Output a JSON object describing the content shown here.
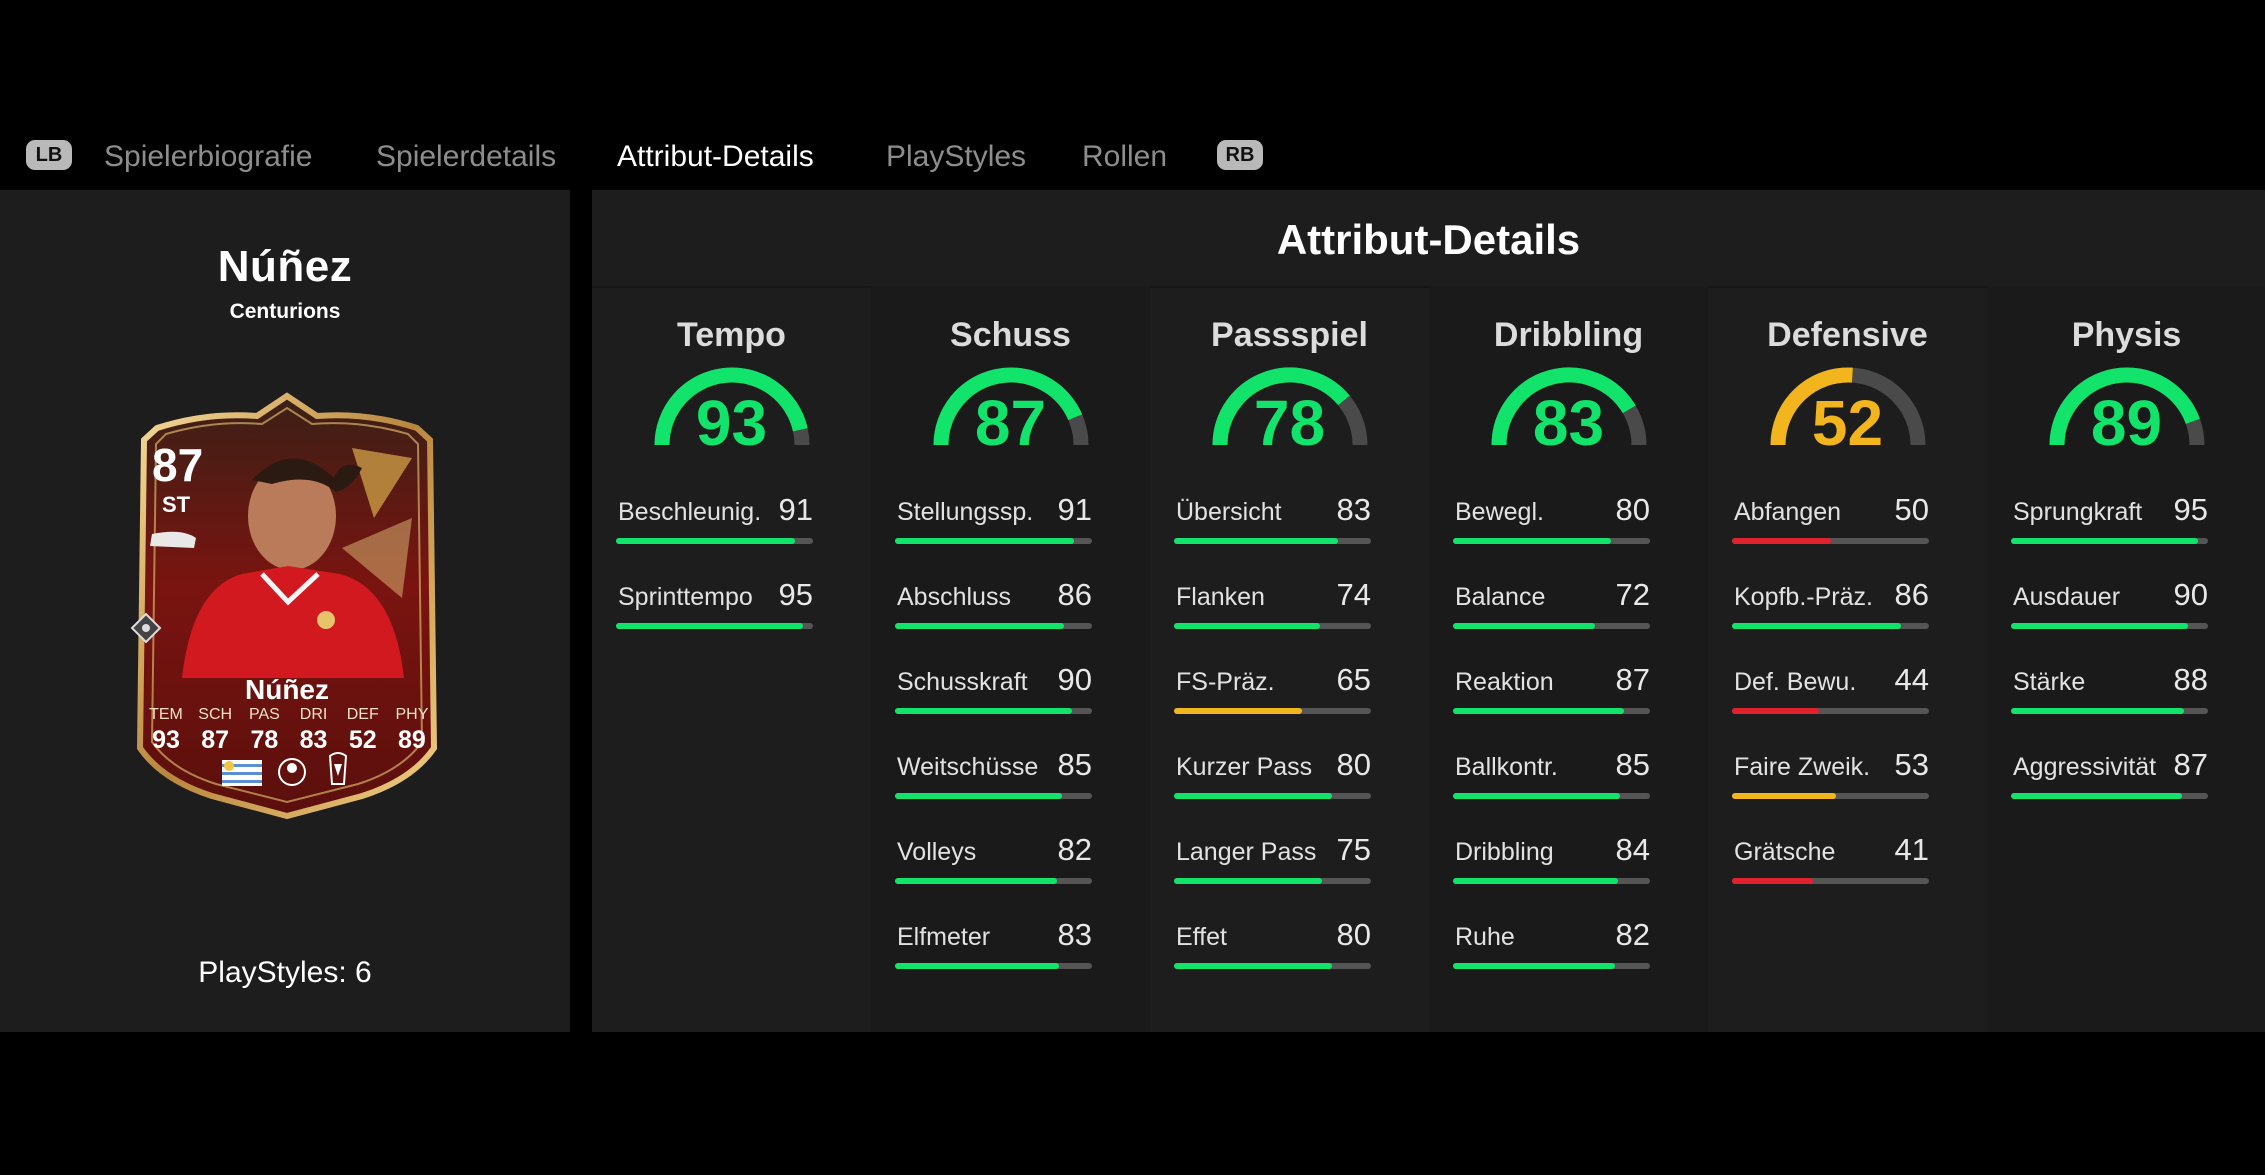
{
  "tabs": {
    "left_bumper": "LB",
    "right_bumper": "RB",
    "items": [
      {
        "label": "Spielerbiografie",
        "active": false
      },
      {
        "label": "Spielerdetails",
        "active": false
      },
      {
        "label": "Attribut-Details",
        "active": true
      },
      {
        "label": "PlayStyles",
        "active": false
      },
      {
        "label": "Rollen",
        "active": false
      }
    ]
  },
  "player": {
    "name": "Núñez",
    "club": "Centurions",
    "playstyles_label": "PlayStyles: 6",
    "card": {
      "rating": "87",
      "position": "ST",
      "name": "Núñez",
      "stats": [
        {
          "key": "TEM",
          "value": "93"
        },
        {
          "key": "SCH",
          "value": "87"
        },
        {
          "key": "PAS",
          "value": "78"
        },
        {
          "key": "DRI",
          "value": "83"
        },
        {
          "key": "DEF",
          "value": "52"
        },
        {
          "key": "PHY",
          "value": "89"
        }
      ],
      "icons": [
        "shirt-player-photo",
        "boot-icon",
        "uruguay-flag-icon",
        "premier-league-icon",
        "liverpool-crest-icon",
        "chemistry-diamond-icon"
      ]
    }
  },
  "attributes": {
    "title": "Attribut-Details",
    "colors": {
      "green": "#12e36a",
      "yellow": "#f2b51d",
      "red": "#e0222f",
      "track": "#555555"
    },
    "categories": [
      {
        "title": "Tempo",
        "value": "93",
        "color": "green",
        "items": [
          {
            "name": "Beschleunig.",
            "value": "91",
            "color": "green"
          },
          {
            "name": "Sprinttempo",
            "value": "95",
            "color": "green"
          }
        ]
      },
      {
        "title": "Schuss",
        "value": "87",
        "color": "green",
        "items": [
          {
            "name": "Stellungssp.",
            "value": "91",
            "color": "green"
          },
          {
            "name": "Abschluss",
            "value": "86",
            "color": "green"
          },
          {
            "name": "Schusskraft",
            "value": "90",
            "color": "green"
          },
          {
            "name": "Weitschüsse",
            "value": "85",
            "color": "green"
          },
          {
            "name": "Volleys",
            "value": "82",
            "color": "green"
          },
          {
            "name": "Elfmeter",
            "value": "83",
            "color": "green"
          }
        ]
      },
      {
        "title": "Passspiel",
        "value": "78",
        "color": "green",
        "items": [
          {
            "name": "Übersicht",
            "value": "83",
            "color": "green"
          },
          {
            "name": "Flanken",
            "value": "74",
            "color": "green"
          },
          {
            "name": "FS-Präz.",
            "value": "65",
            "color": "yellow"
          },
          {
            "name": "Kurzer Pass",
            "value": "80",
            "color": "green"
          },
          {
            "name": "Langer Pass",
            "value": "75",
            "color": "green"
          },
          {
            "name": "Effet",
            "value": "80",
            "color": "green"
          }
        ]
      },
      {
        "title": "Dribbling",
        "value": "83",
        "color": "green",
        "items": [
          {
            "name": "Bewegl.",
            "value": "80",
            "color": "green"
          },
          {
            "name": "Balance",
            "value": "72",
            "color": "green"
          },
          {
            "name": "Reaktion",
            "value": "87",
            "color": "green"
          },
          {
            "name": "Ballkontr.",
            "value": "85",
            "color": "green"
          },
          {
            "name": "Dribbling",
            "value": "84",
            "color": "green"
          },
          {
            "name": "Ruhe",
            "value": "82",
            "color": "green"
          }
        ]
      },
      {
        "title": "Defensive",
        "value": "52",
        "color": "yellow",
        "items": [
          {
            "name": "Abfangen",
            "value": "50",
            "color": "red"
          },
          {
            "name": "Kopfb.-Präz.",
            "value": "86",
            "color": "green"
          },
          {
            "name": "Def. Bewu.",
            "value": "44",
            "color": "red"
          },
          {
            "name": "Faire Zweik.",
            "value": "53",
            "color": "yellow"
          },
          {
            "name": "Grätsche",
            "value": "41",
            "color": "red"
          }
        ]
      },
      {
        "title": "Physis",
        "value": "89",
        "color": "green",
        "items": [
          {
            "name": "Sprungkraft",
            "value": "95",
            "color": "green"
          },
          {
            "name": "Ausdauer",
            "value": "90",
            "color": "green"
          },
          {
            "name": "Stärke",
            "value": "88",
            "color": "green"
          },
          {
            "name": "Aggressivität",
            "value": "87",
            "color": "green"
          }
        ]
      }
    ]
  }
}
